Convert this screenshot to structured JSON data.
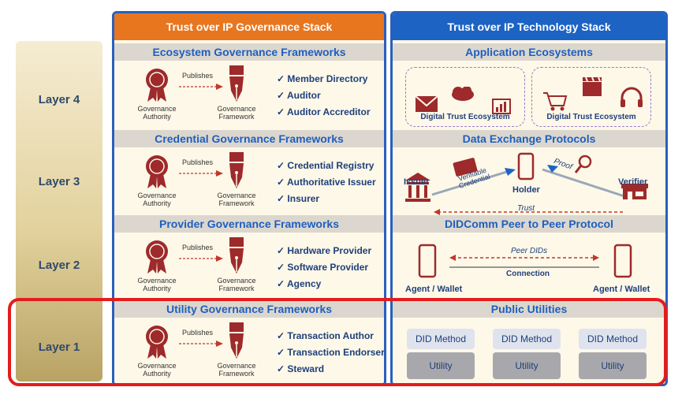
{
  "layers": [
    "Layer 4",
    "Layer 3",
    "Layer 2",
    "Layer 1"
  ],
  "governance": {
    "title": "Trust over IP Governance Stack",
    "sections": [
      {
        "band": "Ecosystem Governance Frameworks",
        "items": [
          "Member Directory",
          "Auditor",
          "Auditor Accreditor"
        ]
      },
      {
        "band": "Credential Governance Frameworks",
        "items": [
          "Credential Registry",
          "Authoritative Issuer",
          "Insurer"
        ]
      },
      {
        "band": "Provider Governance Frameworks",
        "items": [
          "Hardware Provider",
          "Software Provider",
          "Agency"
        ]
      },
      {
        "band": "Utility Governance Frameworks",
        "items": [
          "Transaction Author",
          "Transaction Endorser",
          "Steward"
        ]
      }
    ],
    "publishes": "Publishes",
    "authority_line1": "Governance",
    "authority_line2": "Authority",
    "framework_line1": "Governance",
    "framework_line2": "Framework",
    "check": "✓"
  },
  "technology": {
    "title": "Trust over IP Technology Stack",
    "bands": [
      "Application Ecosystems",
      "Data Exchange Protocols",
      "DIDComm Peer to Peer Protocol",
      "Public Utilities"
    ],
    "ecosystem_label": "Digital Trust Ecosystem",
    "exchange": {
      "issuer": "Issuer",
      "holder": "Holder",
      "verifier": "Verifier",
      "credential_line1": "Verifiable",
      "credential_line2": "Credential",
      "proof": "Proof",
      "trust": "Trust"
    },
    "didcomm": {
      "peer_dids": "Peer DIDs",
      "connection": "Connection",
      "agent_left": "Agent / Wallet",
      "agent_right": "Agent / Wallet"
    },
    "utilities": {
      "did_method": "DID Method",
      "utility": "Utility"
    }
  },
  "colors": {
    "governance_header": "#e8761f",
    "technology_header": "#1c63c4",
    "frame_blue": "#2b5fbd",
    "highlight_red": "#e31c1c",
    "ribbon_red": "#9e2a2b"
  }
}
